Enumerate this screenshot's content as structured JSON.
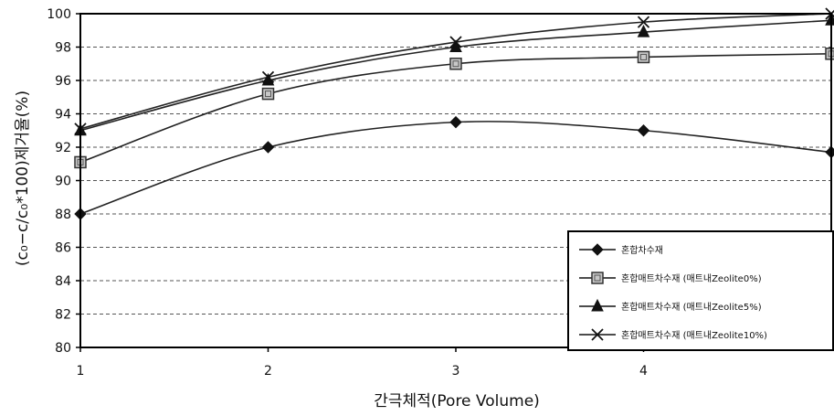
{
  "chart_data": {
    "type": "line",
    "xlabel": "간극체적(Pore Volume)",
    "ylabel": "(c₀−c/c₀*100)제거율(%)",
    "x": [
      1,
      2,
      3,
      4,
      5
    ],
    "xlim": [
      1,
      5
    ],
    "ylim": [
      80,
      100
    ],
    "yticks": [
      80,
      82,
      84,
      86,
      88,
      90,
      92,
      94,
      96,
      98,
      100
    ],
    "xticks": [
      1,
      2,
      3,
      4
    ],
    "grid": "horizontal-dashed",
    "legend_position": "bottom-right",
    "series": [
      {
        "name": "혼합차수재",
        "marker": "diamond",
        "values": [
          88.0,
          92.0,
          93.5,
          93.0,
          91.7
        ]
      },
      {
        "name": "혼합매트차수재 (매트내Zeolite0%)",
        "marker": "square",
        "values": [
          91.1,
          95.2,
          97.0,
          97.4,
          97.6
        ]
      },
      {
        "name": "혼합매트차수재 (매트내Zeolite5%)",
        "marker": "triangle",
        "values": [
          93.0,
          96.0,
          98.0,
          98.9,
          99.6
        ]
      },
      {
        "name": "혼합매트차수재 (매트내Zeolite10%)",
        "marker": "x",
        "values": [
          93.1,
          96.2,
          98.3,
          99.5,
          100.0
        ]
      }
    ],
    "colors": {
      "line": "#222222",
      "grid": "#555555",
      "axis": "#000000"
    }
  }
}
